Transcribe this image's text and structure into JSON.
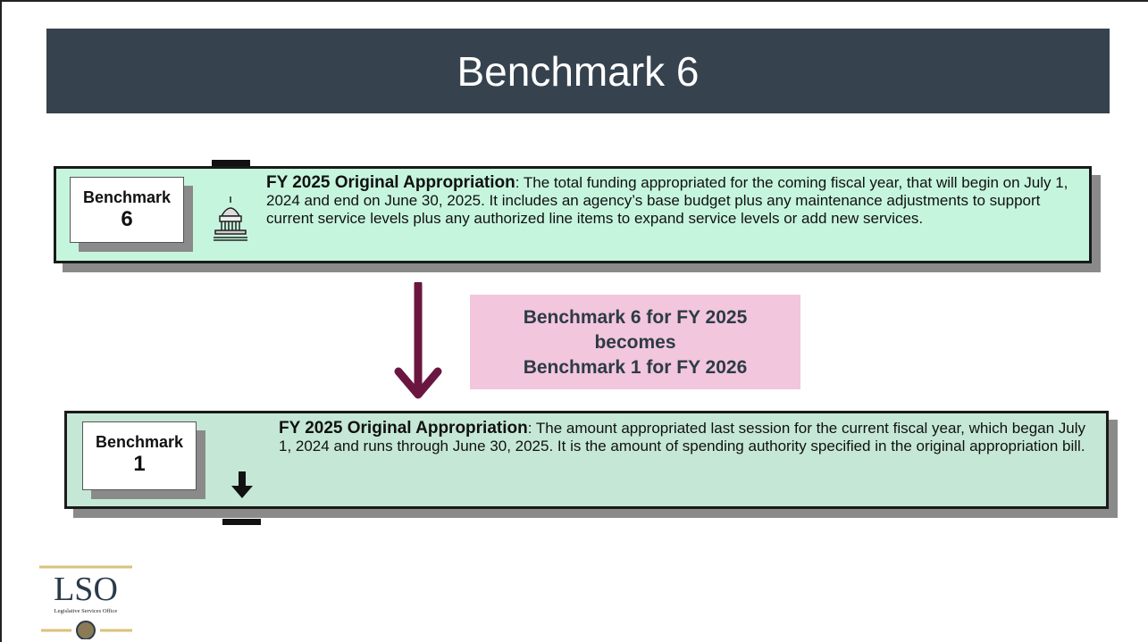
{
  "title": "Benchmark 6",
  "boxes": [
    {
      "badge": [
        "Benchmark",
        "6"
      ],
      "term": "FY 2025 Original Appropriation",
      "definition": ": The total funding appropriated for the coming fiscal year, that will begin on July 1, 2024 and end on June 30, 2025.  It includes an agency’s base budget plus any maintenance adjustments to support current service levels plus any authorized line items to expand service levels or add new services."
    },
    {
      "badge": [
        "Benchmark",
        "1"
      ],
      "term": "FY 2025 Original Appropriation",
      "definition": ": The amount appropriated last session for the current fiscal year, which began July 1, 2024 and runs through June 30, 2025.  It is the amount of spending authority specified in the original appropriation bill."
    }
  ],
  "transition": [
    "Benchmark 6 for FY 2025",
    "becomes",
    "Benchmark 1 for FY 2026"
  ],
  "logo": {
    "name": "LSO",
    "subtitle": "Legislative Services Office"
  }
}
